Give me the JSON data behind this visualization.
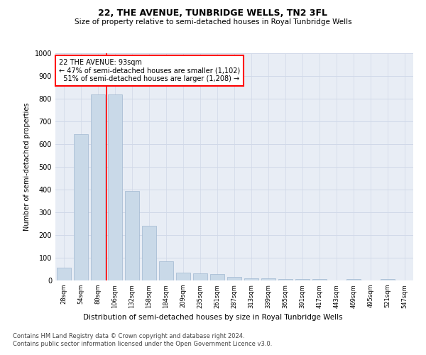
{
  "title": "22, THE AVENUE, TUNBRIDGE WELLS, TN2 3FL",
  "subtitle": "Size of property relative to semi-detached houses in Royal Tunbridge Wells",
  "xlabel_bottom": "Distribution of semi-detached houses by size in Royal Tunbridge Wells",
  "ylabel": "Number of semi-detached properties",
  "categories": [
    "28sqm",
    "54sqm",
    "80sqm",
    "106sqm",
    "132sqm",
    "158sqm",
    "184sqm",
    "209sqm",
    "235sqm",
    "261sqm",
    "287sqm",
    "313sqm",
    "339sqm",
    "365sqm",
    "391sqm",
    "417sqm",
    "443sqm",
    "469sqm",
    "495sqm",
    "521sqm",
    "547sqm"
  ],
  "values": [
    55,
    645,
    820,
    820,
    395,
    240,
    85,
    35,
    32,
    28,
    16,
    8,
    8,
    7,
    6,
    6,
    1,
    7,
    1,
    7,
    1
  ],
  "bar_color": "#c9d9e8",
  "bar_edgecolor": "#a0b8d0",
  "grid_color": "#d0d8e8",
  "background_color": "#e8edf5",
  "property_label": "22 THE AVENUE: 93sqm",
  "pct_smaller": 47,
  "pct_smaller_count": 1102,
  "pct_larger": 51,
  "pct_larger_count": 1208,
  "vline_x": 2.5,
  "ylim": [
    0,
    1000
  ],
  "yticks": [
    0,
    100,
    200,
    300,
    400,
    500,
    600,
    700,
    800,
    900,
    1000
  ],
  "footnote1": "Contains HM Land Registry data © Crown copyright and database right 2024.",
  "footnote2": "Contains public sector information licensed under the Open Government Licence v3.0.",
  "annotation_box_color": "white",
  "annotation_box_edgecolor": "red",
  "vline_color": "red",
  "title_fontsize": 9,
  "subtitle_fontsize": 7.5,
  "ylabel_fontsize": 7,
  "xtick_fontsize": 6,
  "ytick_fontsize": 7,
  "annot_fontsize": 7,
  "xlabel_fontsize": 7.5,
  "footnote_fontsize": 6
}
